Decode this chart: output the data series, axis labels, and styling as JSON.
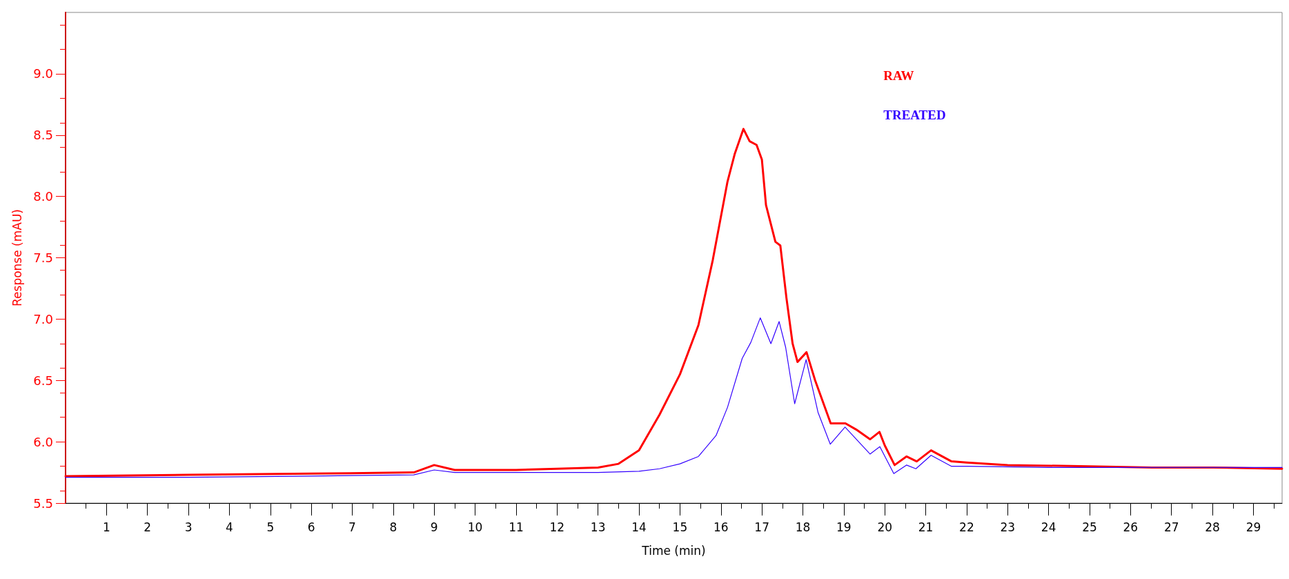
{
  "chart_data": {
    "type": "line",
    "xlabel": "Time (min)",
    "ylabel": "Response (mAU)",
    "xlim": [
      0,
      29.7
    ],
    "ylim": [
      5.5,
      9.5
    ],
    "xticks": [
      1,
      2,
      3,
      4,
      5,
      6,
      7,
      8,
      9,
      10,
      11,
      12,
      13,
      14,
      15,
      16,
      17,
      18,
      19,
      20,
      21,
      22,
      23,
      24,
      25,
      26,
      27,
      28,
      29
    ],
    "yticks": [
      5.5,
      {
        "value": 6,
        "label": "6.0"
      },
      6.5,
      {
        "value": 7,
        "label": "7.0"
      },
      7.5,
      {
        "value": 8,
        "label": "8.0"
      },
      8.5,
      {
        "value": 9,
        "label": "9.0"
      }
    ],
    "grid": false,
    "legend": "top right",
    "marker": "none",
    "line_style": "solid",
    "series": [
      {
        "name": "RAW",
        "color": "#ff0000",
        "x": [
          0,
          3,
          6,
          8.5,
          9,
          9.5,
          11,
          12,
          13,
          13.5,
          14,
          14.5,
          15,
          15.45,
          15.8,
          16.16,
          16.34,
          16.55,
          16.7,
          16.87,
          17.0,
          17.1,
          17.33,
          17.45,
          17.6,
          17.75,
          17.87,
          18.09,
          18.3,
          18.68,
          19.04,
          19.3,
          19.64,
          19.87,
          20.0,
          20.24,
          20.53,
          20.78,
          21.13,
          21.63,
          22,
          23,
          25,
          26.53,
          28,
          29.7
        ],
        "values": [
          5.72,
          5.73,
          5.74,
          5.75,
          5.81,
          5.77,
          5.77,
          5.78,
          5.79,
          5.82,
          5.93,
          6.22,
          6.55,
          6.95,
          7.48,
          8.12,
          8.35,
          8.55,
          8.45,
          8.42,
          8.3,
          7.93,
          7.63,
          7.6,
          7.17,
          6.8,
          6.65,
          6.73,
          6.5,
          6.15,
          6.15,
          6.1,
          6.02,
          6.08,
          5.97,
          5.81,
          5.88,
          5.84,
          5.93,
          5.84,
          5.83,
          5.81,
          5.8,
          5.79,
          5.79,
          5.78
        ]
      },
      {
        "name": "TREATED",
        "color": "#3300ff",
        "x": [
          0,
          3,
          6,
          8.5,
          9,
          9.5,
          11,
          12,
          13,
          14,
          14.5,
          15,
          15.45,
          15.88,
          16.16,
          16.52,
          16.73,
          16.96,
          17.22,
          17.42,
          17.58,
          17.8,
          18.08,
          18.37,
          18.67,
          19.03,
          19.64,
          19.88,
          20.22,
          20.53,
          20.76,
          21.13,
          21.63,
          22,
          24,
          26,
          28,
          29.7
        ],
        "values": [
          5.71,
          5.71,
          5.72,
          5.73,
          5.77,
          5.75,
          5.75,
          5.75,
          5.75,
          5.76,
          5.78,
          5.82,
          5.88,
          6.05,
          6.28,
          6.68,
          6.81,
          7.01,
          6.8,
          6.98,
          6.77,
          6.31,
          6.67,
          6.24,
          5.98,
          6.12,
          5.9,
          5.96,
          5.74,
          5.81,
          5.78,
          5.89,
          5.8,
          5.8,
          5.79,
          5.79,
          5.79,
          5.79
        ]
      }
    ]
  }
}
